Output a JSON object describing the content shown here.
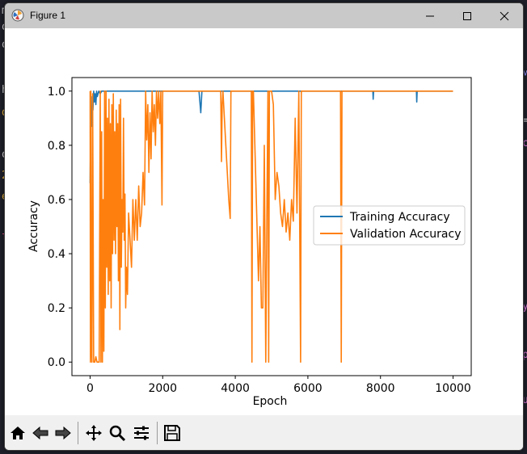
{
  "window": {
    "title": "Figure 1"
  },
  "background_fragments": [
    {
      "text": "more",
      "color": "#d4d4d4"
    },
    {
      "text": "o",
      "color": "#d4d4d4"
    },
    {
      "text": "o",
      "color": "#d4d4d4"
    },
    {
      "text": "h",
      "color": "#d4d4d4"
    },
    {
      "text": "d",
      "color": "#e0b040"
    },
    {
      "text": "o",
      "color": "#d4d4d4"
    },
    {
      "text": "2",
      "color": "#e0b040"
    },
    {
      "text": "e",
      "color": "#e0b040"
    },
    {
      "text": "l",
      "color": "#e05080"
    },
    {
      "text": "M",
      "color": "#9090ff"
    },
    {
      "text": "=",
      "color": "#d4d4d4"
    },
    {
      "text": "c",
      "color": "#d070d0"
    },
    {
      "text": "y",
      "color": "#d070d0"
    },
    {
      "text": "p",
      "color": "#d070d0"
    },
    {
      "text": "u",
      "color": "#d070d0"
    }
  ],
  "toolbar": {
    "buttons": [
      "home-icon",
      "back-icon",
      "forward-icon",
      "pan-icon",
      "zoom-icon",
      "subplots-icon",
      "save-icon"
    ]
  },
  "chart_data": {
    "type": "line",
    "title": "",
    "xlabel": "Epoch",
    "ylabel": "Accuracy",
    "xlim": [
      -500,
      10500
    ],
    "ylim": [
      -0.05,
      1.05
    ],
    "xticks": [
      0,
      2000,
      4000,
      6000,
      8000,
      10000
    ],
    "yticks": [
      0.0,
      0.2,
      0.4,
      0.6,
      0.8,
      1.0
    ],
    "xtick_labels": [
      "0",
      "2000",
      "4000",
      "6000",
      "8000",
      "10000"
    ],
    "ytick_labels": [
      "0.0",
      "0.2",
      "0.4",
      "0.6",
      "0.8",
      "1.0"
    ],
    "grid": false,
    "legend_position": "center-right",
    "series": [
      {
        "name": "Training Accuracy",
        "color": "#1f77b4",
        "x": [
          0,
          20,
          40,
          60,
          80,
          100,
          120,
          140,
          160,
          180,
          200,
          240,
          280,
          320,
          400,
          3000,
          3050,
          3080,
          3100,
          7790,
          7800,
          7810,
          7820,
          8990,
          9000,
          9010,
          9020,
          10000
        ],
        "y": [
          0.66,
          0.93,
          0.87,
          0.98,
          0.93,
          1.0,
          0.96,
          0.99,
          0.95,
          1.0,
          0.98,
          1.0,
          0.99,
          1.0,
          1.0,
          1.0,
          0.92,
          1.0,
          1.0,
          1.0,
          0.97,
          1.0,
          1.0,
          1.0,
          0.96,
          1.0,
          1.0,
          1.0
        ]
      },
      {
        "name": "Validation Accuracy",
        "color": "#ff7f0e",
        "x": [
          0,
          10,
          20,
          30,
          50,
          70,
          100,
          130,
          160,
          190,
          220,
          250,
          280,
          300,
          320,
          340,
          360,
          380,
          400,
          420,
          440,
          460,
          480,
          500,
          520,
          540,
          560,
          580,
          600,
          620,
          640,
          660,
          680,
          700,
          720,
          740,
          760,
          780,
          800,
          820,
          840,
          860,
          880,
          900,
          920,
          940,
          960,
          980,
          1000,
          1030,
          1060,
          1100,
          1140,
          1180,
          1220,
          1260,
          1300,
          1340,
          1380,
          1420,
          1460,
          1500,
          1530,
          1560,
          1590,
          1620,
          1650,
          1680,
          1710,
          1740,
          1770,
          1800,
          1830,
          1860,
          1890,
          1920,
          1950,
          1980,
          2000,
          2020,
          2050,
          3600,
          3620,
          3640,
          3660,
          3700,
          3740,
          3780,
          3820,
          3860,
          3880,
          3900,
          4440,
          4460,
          4480,
          4500,
          4540,
          4600,
          4640,
          4680,
          4720,
          4760,
          4800,
          4840,
          4880,
          4900,
          4920,
          4940,
          5000,
          5050,
          5100,
          5150,
          5200,
          5250,
          5300,
          5350,
          5400,
          5450,
          5500,
          5550,
          5600,
          5650,
          5700,
          5750,
          5800,
          5820,
          5840,
          5860,
          5880,
          6900,
          6920,
          6940,
          6960,
          10000
        ],
        "y": [
          1.0,
          0.0,
          1.0,
          0.1,
          0.0,
          0.99,
          0.0,
          0.0,
          0.02,
          0.0,
          0.0,
          0.0,
          1.0,
          0.0,
          0.85,
          0.0,
          0.6,
          0.04,
          1.0,
          0.2,
          1.0,
          0.35,
          0.9,
          0.25,
          0.97,
          0.3,
          0.88,
          0.2,
          0.95,
          0.4,
          0.99,
          0.45,
          0.85,
          0.4,
          0.93,
          0.5,
          0.88,
          0.3,
          0.95,
          0.12,
          0.97,
          0.35,
          0.6,
          0.48,
          0.9,
          0.45,
          0.62,
          0.2,
          0.35,
          0.25,
          0.55,
          0.45,
          0.35,
          0.6,
          0.45,
          0.6,
          0.45,
          0.65,
          0.5,
          0.55,
          0.7,
          0.58,
          1.0,
          0.82,
          0.95,
          0.7,
          0.92,
          0.75,
          1.0,
          0.85,
          0.95,
          0.8,
          1.0,
          0.9,
          1.0,
          0.88,
          1.0,
          0.58,
          1.0,
          1.0,
          1.0,
          1.0,
          0.74,
          0.95,
          1.0,
          0.9,
          0.8,
          0.7,
          0.6,
          0.53,
          1.0,
          1.0,
          1.0,
          0.0,
          1.0,
          1.0,
          0.8,
          0.5,
          0.3,
          0.5,
          0.2,
          0.2,
          0.8,
          0.0,
          0.7,
          1.0,
          0.0,
          1.0,
          1.0,
          0.95,
          0.6,
          0.7,
          0.65,
          0.55,
          0.5,
          0.6,
          0.48,
          0.55,
          0.45,
          0.6,
          0.52,
          0.9,
          0.55,
          1.0,
          0.0,
          1.0,
          1.0,
          1.0,
          1.0,
          1.0,
          0.0,
          1.0,
          1.0,
          1.0
        ]
      }
    ]
  }
}
